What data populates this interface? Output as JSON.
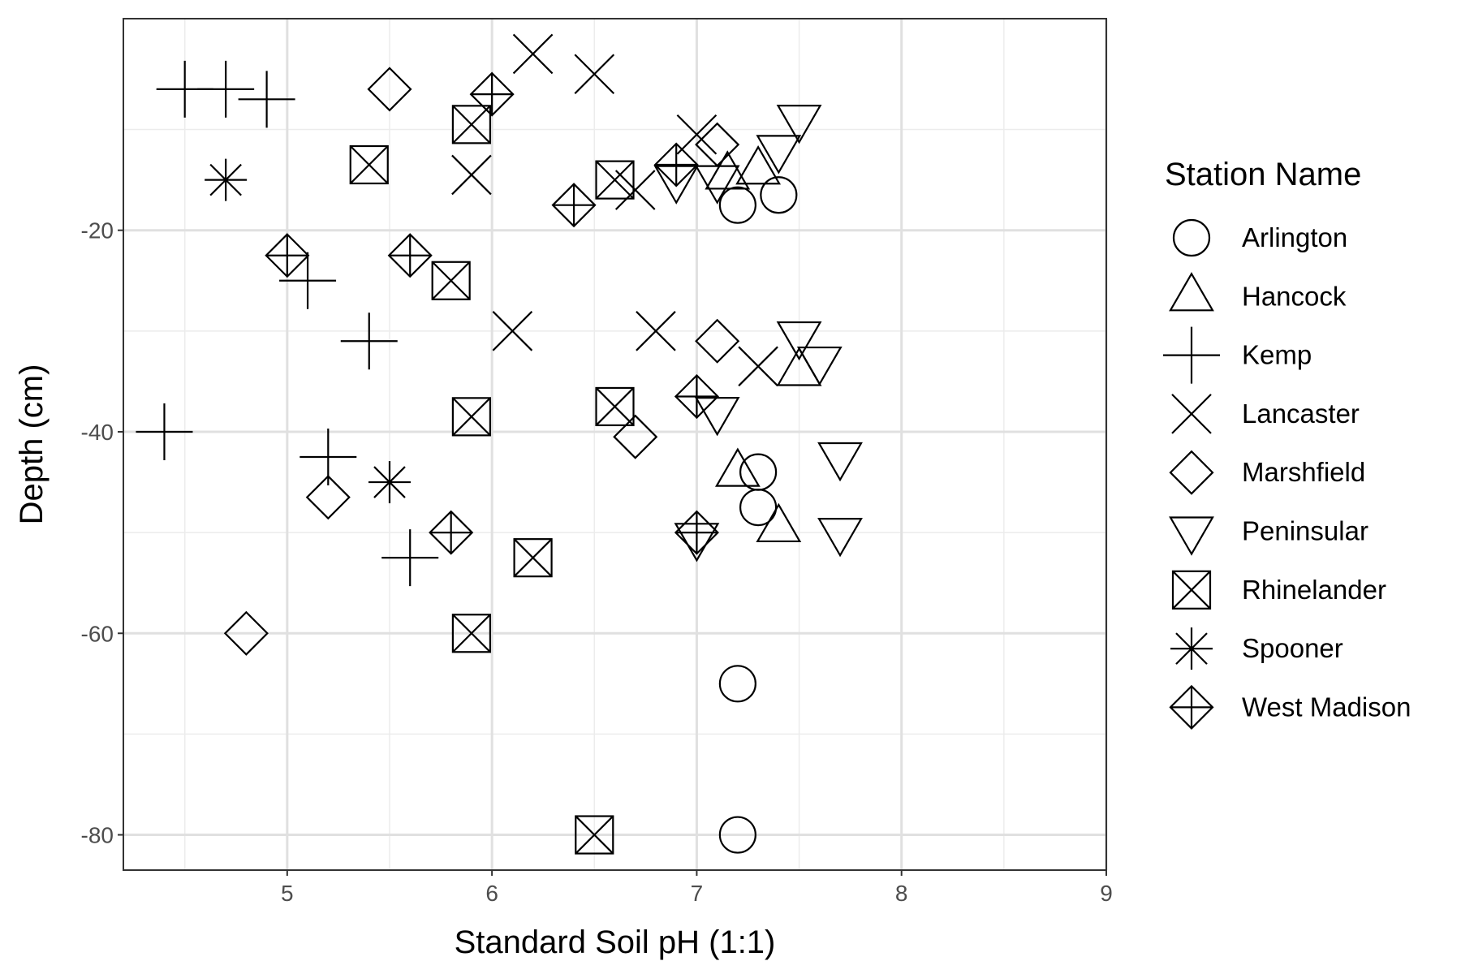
{
  "chart_data": {
    "type": "scatter",
    "xlabel": "Standard Soil pH (1:1)",
    "ylabel": "Depth (cm)",
    "xlim": [
      4.2,
      9.0
    ],
    "ylim": [
      -83.5,
      1.0
    ],
    "x_ticks": [
      5,
      6,
      7,
      8,
      9
    ],
    "y_ticks": [
      -80,
      -60,
      -40,
      -20
    ],
    "grid": true,
    "legend_position": "right",
    "legend_title": "Station Name",
    "series": [
      {
        "name": "Arlington",
        "shape": "circle",
        "x": [
          7.2,
          7.4,
          7.3,
          7.3,
          7.2,
          7.2
        ],
        "y": [
          -17.5,
          -16.5,
          -44,
          -47.5,
          -65,
          -80
        ]
      },
      {
        "name": "Hancock",
        "shape": "triangle-up",
        "x": [
          7.15,
          7.3,
          7.5,
          7.2,
          7.4
        ],
        "y": [
          -14.5,
          -14,
          -34,
          -44,
          -49.5
        ]
      },
      {
        "name": "Kemp",
        "shape": "plus",
        "x": [
          4.5,
          4.7,
          4.9,
          5.1,
          5.4,
          4.4,
          5.2,
          5.6
        ],
        "y": [
          -6,
          -6,
          -7,
          -25,
          -31,
          -40,
          -42.5,
          -52.5
        ]
      },
      {
        "name": "Lancaster",
        "shape": "cross",
        "x": [
          6.2,
          6.5,
          5.9,
          6.7,
          7.0,
          6.1,
          6.8,
          7.3
        ],
        "y": [
          -2.5,
          -4.5,
          -14.5,
          -16,
          -10.5,
          -30,
          -30,
          -33.5
        ]
      },
      {
        "name": "Marshfield",
        "shape": "diamond",
        "x": [
          5.5,
          7.1,
          7.1,
          6.7,
          5.2,
          4.8
        ],
        "y": [
          -6,
          -11.5,
          -31,
          -40.5,
          -46.5,
          -60
        ]
      },
      {
        "name": "Peninsular",
        "shape": "triangle-down",
        "x": [
          7.5,
          7.4,
          7.1,
          6.9,
          7.5,
          7.6,
          7.1,
          7.7,
          7.7,
          7.0
        ],
        "y": [
          -9,
          -12,
          -15,
          -15,
          -30.5,
          -33,
          -38,
          -42.5,
          -50,
          -50.5
        ]
      },
      {
        "name": "Rhinelander",
        "shape": "square-cross",
        "x": [
          5.9,
          5.4,
          6.6,
          5.8,
          5.9,
          6.6,
          6.2,
          5.9,
          6.5
        ],
        "y": [
          -9.5,
          -13.5,
          -15,
          -25,
          -38.5,
          -37.5,
          -52.5,
          -60,
          -80
        ]
      },
      {
        "name": "Spooner",
        "shape": "asterisk",
        "x": [
          4.7,
          5.5
        ],
        "y": [
          -15,
          -45
        ]
      },
      {
        "name": "West Madison",
        "shape": "diamond-plus",
        "x": [
          6.0,
          6.9,
          6.4,
          5.0,
          5.6,
          7.0,
          5.8,
          7.0
        ],
        "y": [
          -6.5,
          -13.5,
          -17.5,
          -22.5,
          -22.5,
          -36.5,
          -50,
          -50
        ]
      }
    ]
  }
}
